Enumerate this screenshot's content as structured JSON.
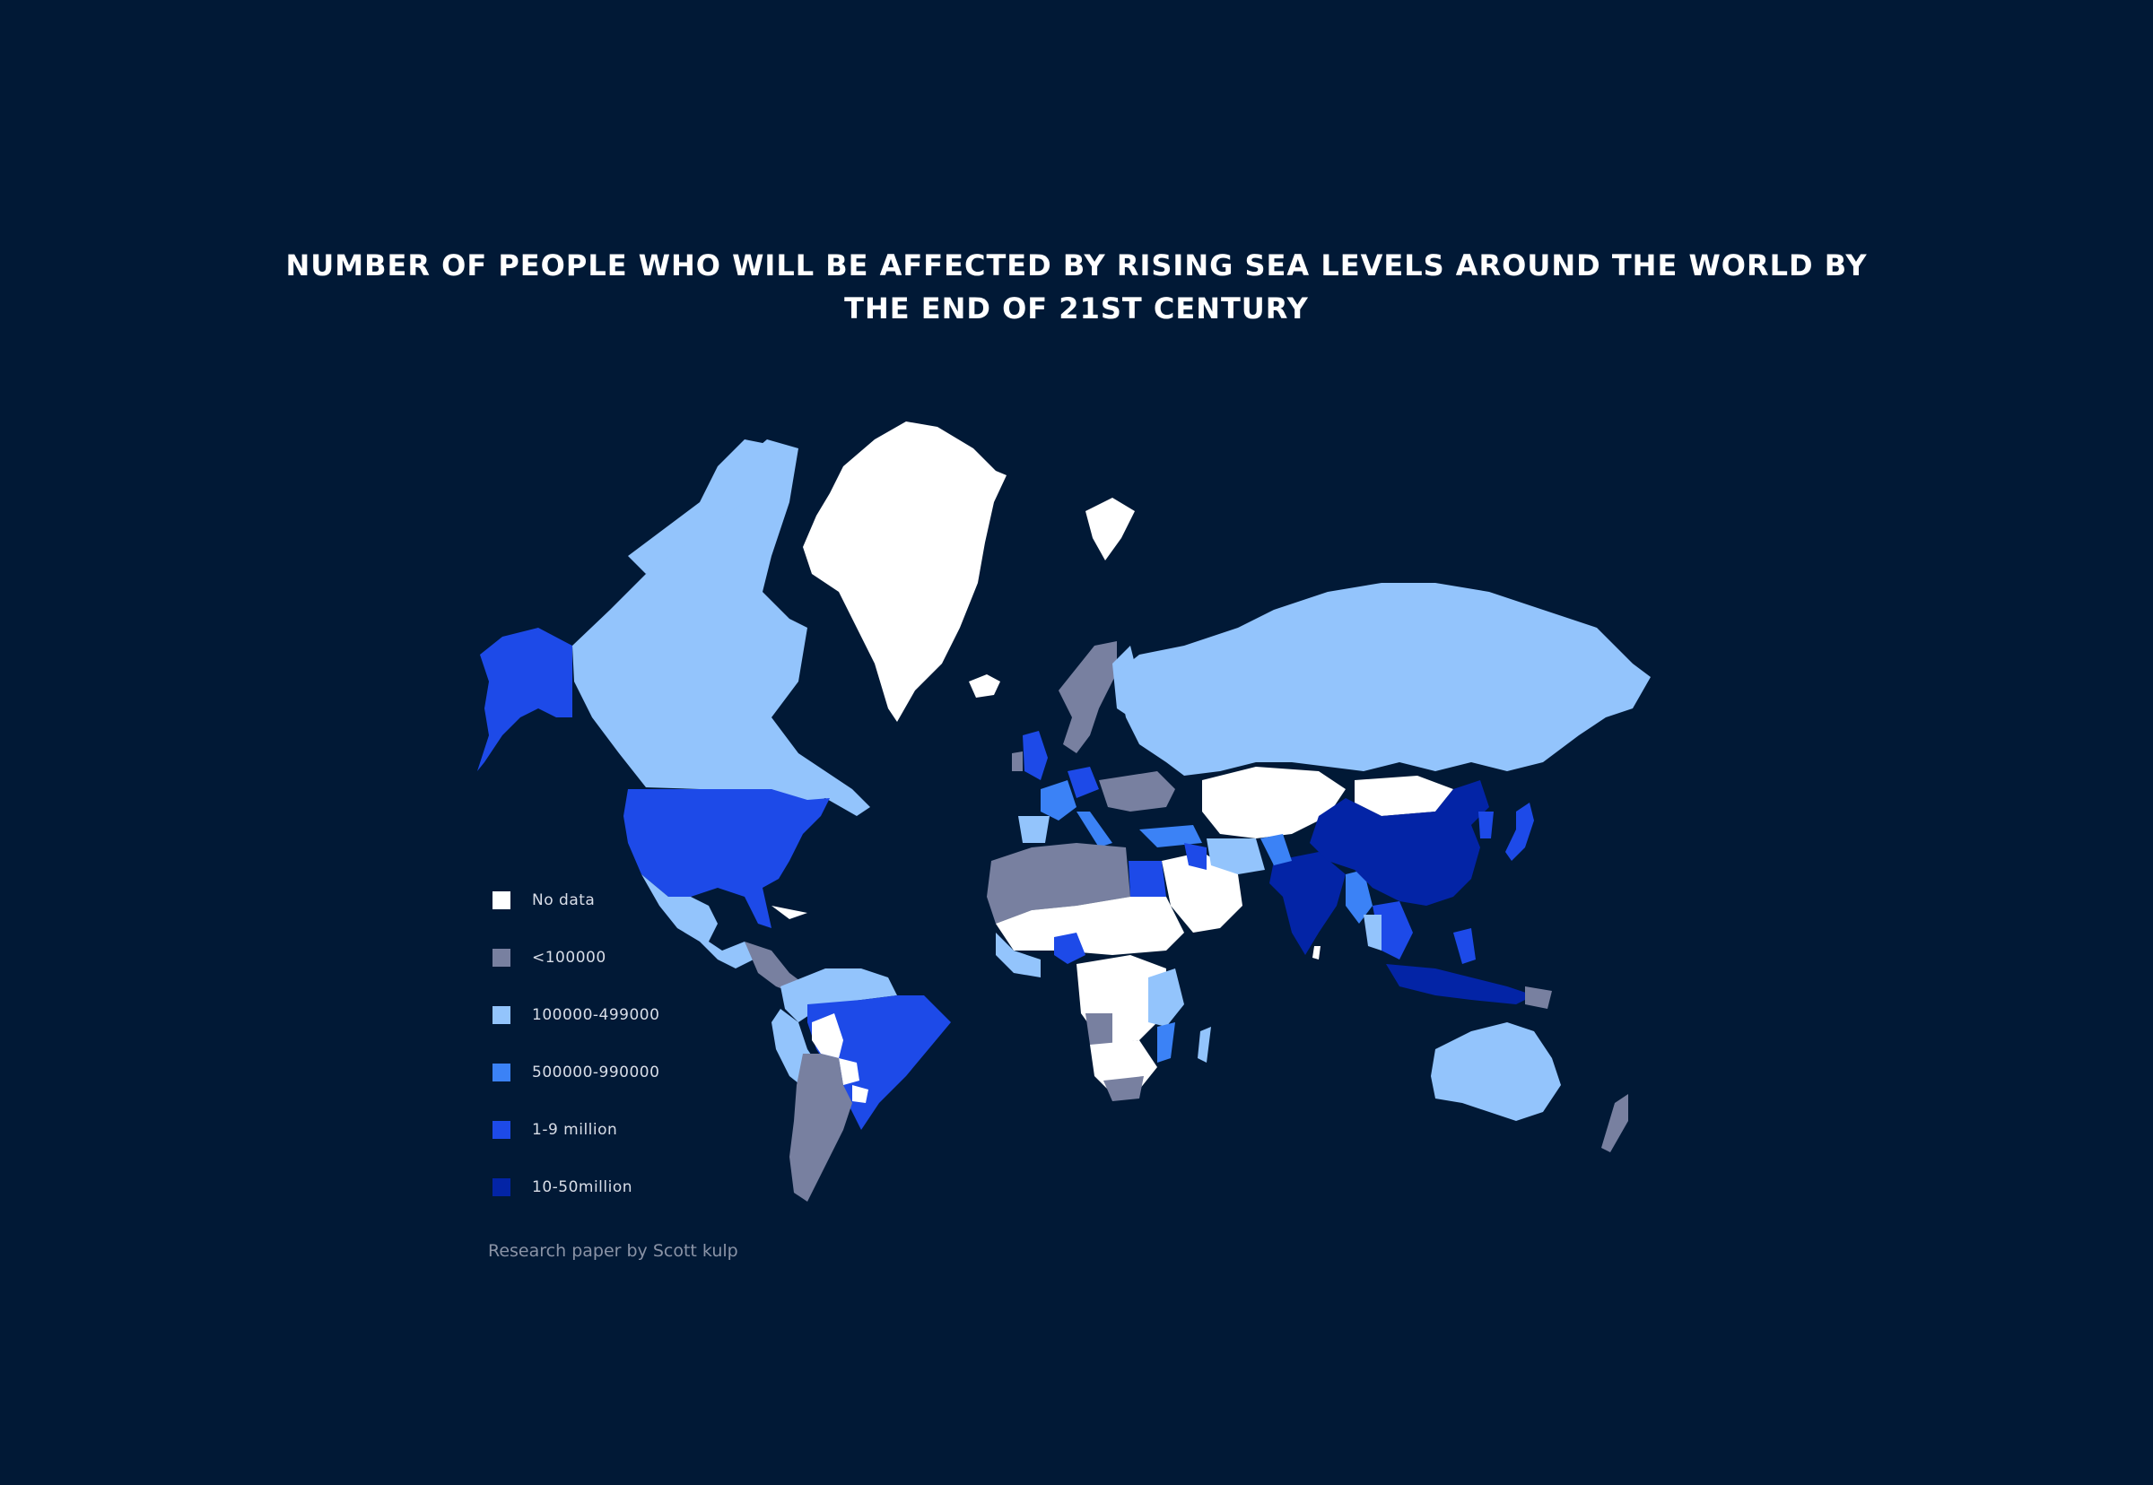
{
  "title": "NUMBER OF PEOPLE WHO WILL BE AFFECTED BY RISING SEA LEVELS AROUND THE WORLD BY THE END OF 21ST CENTURY",
  "source": "Research paper by Scott kulp",
  "colors": {
    "background": "#011936",
    "no_data": "#ffffff",
    "lt_100k": "#7880a0",
    "100k_499k": "#93c4fc",
    "500k_990k": "#3b82f6",
    "1_9m": "#1d4ae8",
    "10_50m": "#0324a6"
  },
  "legend": [
    {
      "label": "No data",
      "color": "#ffffff"
    },
    {
      "label": "<100000",
      "color": "#7880a0"
    },
    {
      "label": "100000-499000",
      "color": "#93c4fc"
    },
    {
      "label": "500000-990000",
      "color": "#3b82f6"
    },
    {
      "label": "1-9 million",
      "color": "#1d4ae8"
    },
    {
      "label": "10-50million",
      "color": "#0324a6"
    }
  ],
  "regions": [
    {
      "name": "Greenland",
      "class": "No data"
    },
    {
      "name": "Canada",
      "class": "100000-499000"
    },
    {
      "name": "Alaska",
      "class": "1-9 million"
    },
    {
      "name": "United States",
      "class": "1-9 million"
    },
    {
      "name": "Mexico",
      "class": "100000-499000"
    },
    {
      "name": "Brazil",
      "class": "1-9 million"
    },
    {
      "name": "Argentina",
      "class": "<100000"
    },
    {
      "name": "Russia",
      "class": "100000-499000"
    },
    {
      "name": "China",
      "class": "10-50million"
    },
    {
      "name": "India",
      "class": "10-50million"
    },
    {
      "name": "Australia",
      "class": "100000-499000"
    },
    {
      "name": "Nigeria",
      "class": "1-9 million"
    },
    {
      "name": "Egypt",
      "class": "1-9 million"
    },
    {
      "name": "United Kingdom",
      "class": "1-9 million"
    },
    {
      "name": "Japan",
      "class": "1-9 million"
    },
    {
      "name": "Indonesia",
      "class": "10-50million"
    }
  ]
}
